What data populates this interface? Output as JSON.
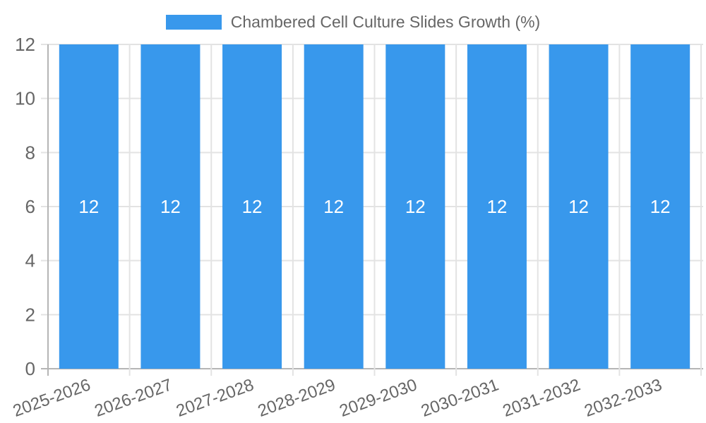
{
  "chart_data": {
    "type": "bar",
    "title": "Chambered Cell Culture Slides Growth (%)",
    "legend": {
      "position": "top",
      "label": "Chambered Cell Culture Slides Growth (%)"
    },
    "categories": [
      "2025-2026",
      "2026-2027",
      "2027-2028",
      "2028-2029",
      "2029-2030",
      "2030-2031",
      "2031-2032",
      "2032-2033"
    ],
    "series": [
      {
        "name": "Chambered Cell Culture Slides Growth (%)",
        "values": [
          12,
          12,
          12,
          12,
          12,
          12,
          12,
          12
        ]
      }
    ],
    "value_labels_shown": true,
    "xlabel": "",
    "ylabel": "",
    "ylim": [
      0,
      12
    ],
    "yticks": [
      0,
      2,
      4,
      6,
      8,
      10,
      12
    ],
    "grid": true,
    "colors": {
      "bar": "#3898EC",
      "value_label": "#FFFFFF",
      "grid_line": "#E3E3E3",
      "axis_line": "#B5B5B5",
      "tick_text": "#666666",
      "background": "#FFFFFF"
    }
  }
}
